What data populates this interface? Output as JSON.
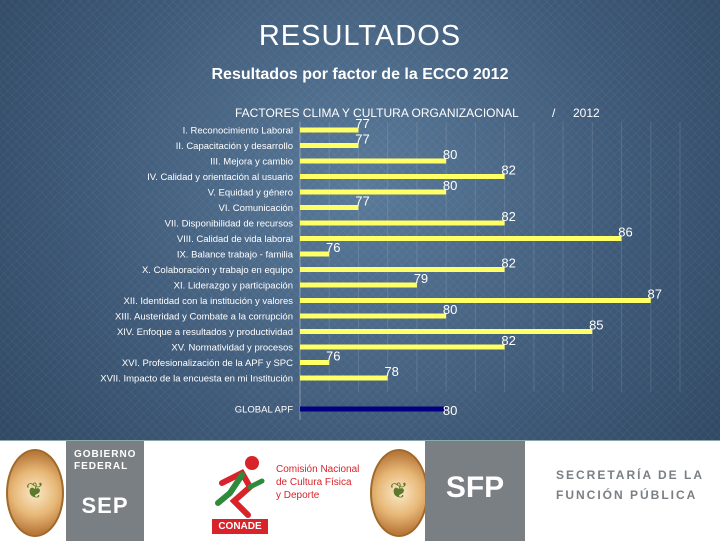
{
  "title": "RESULTADOS",
  "subtitle": "Resultados  por factor de la ECCO 2012",
  "chart_data": {
    "type": "bar",
    "orientation": "horizontal",
    "title": "FACTORES  CLIMA  Y CULTURA ORGANIZACIONAL",
    "separator": "/",
    "legend": "2012",
    "xlim": [
      75,
      88
    ],
    "grid": true,
    "categories": [
      "I. Reconocimiento Laboral",
      "II. Capacitación y desarrollo",
      "III. Mejora y cambio",
      "IV. Calidad y orientación al usuario",
      "V. Equidad y género",
      "VI. Comunicación",
      "VII. Disponibilidad de recursos",
      "VIII. Calidad de vida laboral",
      "IX. Balance trabajo - familia",
      "X. Colaboración y trabajo en equipo",
      "XI. Liderazgo y participación",
      "XII. Identidad con la institución y valores",
      "XIII. Austeridad y Combate a la corrupción",
      "XIV. Enfoque a resultados y productividad",
      "XV. Normatividad y procesos",
      "XVI. Profesionalización de la APF y SPC",
      "XVII. Impacto de la encuesta en mi Institución"
    ],
    "values": [
      77,
      77,
      80,
      82,
      80,
      77,
      82,
      86,
      76,
      82,
      79,
      87,
      80,
      85,
      82,
      76,
      78
    ],
    "global_label": "GLOBAL APF",
    "global_value": 80,
    "colors": {
      "bar": "#ffff66",
      "global_bar": "#000080",
      "label": "#ffffff",
      "value": "#ffffff"
    }
  },
  "footer": {
    "gobierno": "GOBIERNO FEDERAL",
    "sep": "SEP",
    "conade": "CONADE",
    "conade_text": [
      "Comisión Nacional",
      "de Cultura Física",
      "y Deporte"
    ],
    "sfp": "SFP",
    "sfp_text": [
      "SECRETARÍA DE LA",
      "FUNCIÓN PÚBLICA"
    ]
  }
}
